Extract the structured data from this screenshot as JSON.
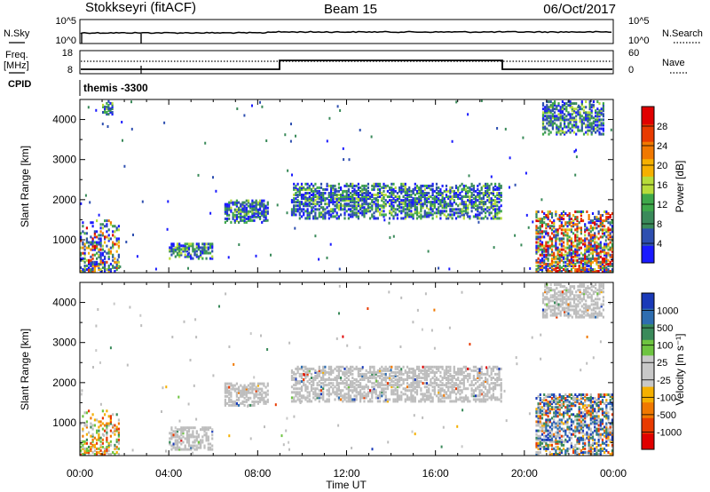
{
  "header": {
    "station": "Stokkseyri (fitACF)",
    "beam": "Beam 15",
    "date": "06/Oct/2017"
  },
  "noise_panel": {
    "left_label": "N.Sky",
    "left_ticks": [
      "10^5",
      "10^0"
    ],
    "right_label": "N.Search",
    "right_ticks": [
      "10^5",
      "10^0"
    ]
  },
  "freq_panel": {
    "left_label_1": "Freq.",
    "left_label_2": "[MHz]",
    "left_ticks": [
      "18",
      "8"
    ],
    "right_label": "Nave",
    "right_ticks": [
      "60",
      "0"
    ]
  },
  "cpid_panel": {
    "label": "CPID",
    "value": "themis -3300"
  },
  "colors": {
    "power_scale": [
      "#1a1aff",
      "#2e4fb0",
      "#3a8a5a",
      "#3ea84a",
      "#b7dc3a",
      "#f5b000",
      "#f07800",
      "#e83a00",
      "#e00000"
    ],
    "velocity_scale": [
      "#1a3ab8",
      "#2e6db0",
      "#3a8a5a",
      "#6ec440",
      "#c8c8c8",
      "#c8c8c8",
      "#f5b000",
      "#f07800",
      "#e83a00",
      "#e00000"
    ],
    "ground_scatter": "#bdbdbd"
  },
  "chart_data": [
    {
      "type": "heatmap",
      "name": "power",
      "ylabel": "Slant Range [km]",
      "yticks": [
        "1000",
        "2000",
        "3000",
        "4000"
      ],
      "ylim": [
        180,
        4500
      ],
      "xlim_hours": [
        0,
        24
      ],
      "colorbar_label": "Power [dB]",
      "colorbar_ticks": [
        "4",
        "8",
        "12",
        "16",
        "20",
        "24",
        "28"
      ],
      "colorbar_range": [
        0,
        32
      ],
      "echo_regions": [
        {
          "t": [
            0.0,
            1.8
          ],
          "range_km": [
            180,
            1500
          ],
          "level": "mixed"
        },
        {
          "t": [
            1.0,
            1.5
          ],
          "range_km": [
            4100,
            4450
          ],
          "level": "mid"
        },
        {
          "t": [
            4.0,
            6.0
          ],
          "range_km": [
            500,
            900
          ],
          "level": "mid"
        },
        {
          "t": [
            6.5,
            8.5
          ],
          "range_km": [
            1400,
            2000
          ],
          "level": "mid"
        },
        {
          "t": [
            9.5,
            19.0
          ],
          "range_km": [
            1500,
            2400
          ],
          "level": "mid"
        },
        {
          "t": [
            20.5,
            24.0
          ],
          "range_km": [
            180,
            1700
          ],
          "level": "high"
        },
        {
          "t": [
            20.8,
            23.6
          ],
          "range_km": [
            3600,
            4450
          ],
          "level": "mid"
        }
      ]
    },
    {
      "type": "heatmap",
      "name": "velocity",
      "ylabel": "Slant Range [km]",
      "yticks": [
        "1000",
        "2000",
        "3000",
        "4000"
      ],
      "ylim": [
        180,
        4500
      ],
      "xlim_hours": [
        0,
        24
      ],
      "xlabel": "Time UT",
      "xticks": [
        "00:00",
        "04:00",
        "08:00",
        "12:00",
        "16:00",
        "20:00",
        "00:00"
      ],
      "colorbar_label": "Velocity [m s⁻¹]",
      "colorbar_ticks": [
        "1000",
        "500",
        "100",
        "25",
        "-25",
        "-100",
        "-500",
        "-1000"
      ],
      "echo_regions": [
        {
          "t": [
            0.0,
            1.8
          ],
          "range_km": [
            180,
            1300
          ],
          "level": "toward"
        },
        {
          "t": [
            4.0,
            6.0
          ],
          "range_km": [
            300,
            900
          ],
          "level": "gs"
        },
        {
          "t": [
            6.5,
            8.5
          ],
          "range_km": [
            1400,
            2000
          ],
          "level": "gs"
        },
        {
          "t": [
            9.5,
            19.0
          ],
          "range_km": [
            1500,
            2400
          ],
          "level": "gs"
        },
        {
          "t": [
            20.5,
            24.0
          ],
          "range_km": [
            180,
            1700
          ],
          "level": "away"
        },
        {
          "t": [
            20.8,
            23.6
          ],
          "range_km": [
            3600,
            4450
          ],
          "level": "gs"
        }
      ]
    }
  ]
}
